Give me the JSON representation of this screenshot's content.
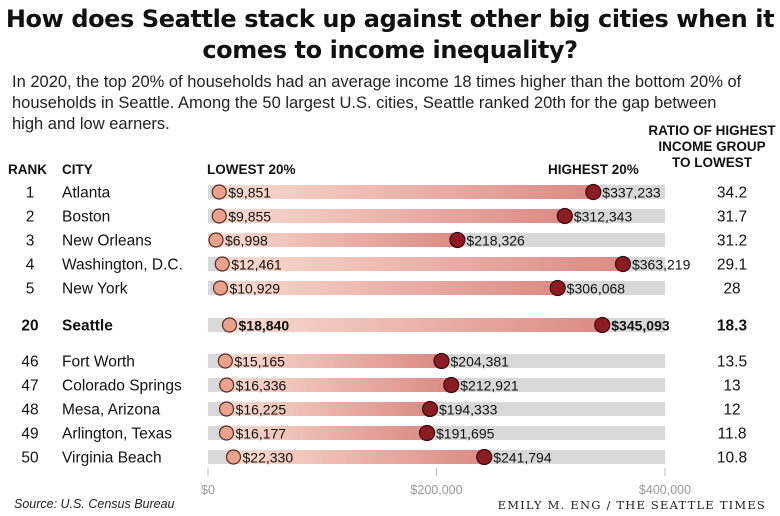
{
  "title": "How does Seattle stack up against other big cities when it comes to income inequality?",
  "subtitle": "In 2020, the top 20% of households had an average income 18 times higher than the bottom 20% of households in Seattle. Among the 50 largest U.S. cities, Seattle ranked 20th for the gap between high and low earners.",
  "headers": {
    "rank": "RANK",
    "city": "CITY",
    "lowest": "LOWEST 20%",
    "highest": "HIGHEST 20%",
    "ratio": "RATIO OF HIGHEST INCOME GROUP TO LOWEST"
  },
  "source": "Source: U.S. Census Bureau",
  "credit": "EMILY M. ENG / THE SEATTLE TIMES",
  "colors": {
    "track": "#d8d8d8",
    "gradient_start": "#f9dcd2",
    "gradient_end": "#dc8a84",
    "low_dot": "#e8a28e",
    "high_dot": "#8b1c24"
  },
  "chart_data": {
    "type": "dumbbell",
    "xlim": [
      0,
      400000
    ],
    "xticks": [
      0,
      200000,
      400000
    ],
    "xtick_labels": [
      "$0",
      "$200,000",
      "$400,000"
    ],
    "series_names": [
      "LOWEST 20%",
      "HIGHEST 20%"
    ],
    "highlight": "Seattle",
    "rows": [
      {
        "rank": "1",
        "city": "Atlanta",
        "low": 9851,
        "low_label": "$9,851",
        "high": 337233,
        "high_label": "$337,233",
        "ratio": "34.2"
      },
      {
        "rank": "2",
        "city": "Boston",
        "low": 9855,
        "low_label": "$9,855",
        "high": 312343,
        "high_label": "$312,343",
        "ratio": "31.7"
      },
      {
        "rank": "3",
        "city": "New Orleans",
        "low": 6998,
        "low_label": "$6,998",
        "high": 218326,
        "high_label": "$218,326",
        "ratio": "31.2"
      },
      {
        "rank": "4",
        "city": "Washington, D.C.",
        "low": 12461,
        "low_label": "$12,461",
        "high": 363219,
        "high_label": "$363,219",
        "ratio": "29.1"
      },
      {
        "rank": "5",
        "city": "New York",
        "low": 10929,
        "low_label": "$10,929",
        "high": 306068,
        "high_label": "$306,068",
        "ratio": "28"
      },
      {
        "rank": "20",
        "city": "Seattle",
        "low": 18840,
        "low_label": "$18,840",
        "high": 345093,
        "high_label": "$345,093",
        "ratio": "18.3"
      },
      {
        "rank": "46",
        "city": "Fort Worth",
        "low": 15165,
        "low_label": "$15,165",
        "high": 204381,
        "high_label": "$204,381",
        "ratio": "13.5"
      },
      {
        "rank": "47",
        "city": "Colorado Springs",
        "low": 16336,
        "low_label": "$16,336",
        "high": 212921,
        "high_label": "$212,921",
        "ratio": "13"
      },
      {
        "rank": "48",
        "city": "Mesa, Arizona",
        "low": 16225,
        "low_label": "$16,225",
        "high": 194333,
        "high_label": "$194,333",
        "ratio": "12"
      },
      {
        "rank": "49",
        "city": "Arlington, Texas",
        "low": 16177,
        "low_label": "$16,177",
        "high": 191695,
        "high_label": "$191,695",
        "ratio": "11.8"
      },
      {
        "rank": "50",
        "city": "Virginia Beach",
        "low": 22330,
        "low_label": "$22,330",
        "high": 241794,
        "high_label": "$241,794",
        "ratio": "10.8"
      }
    ]
  }
}
